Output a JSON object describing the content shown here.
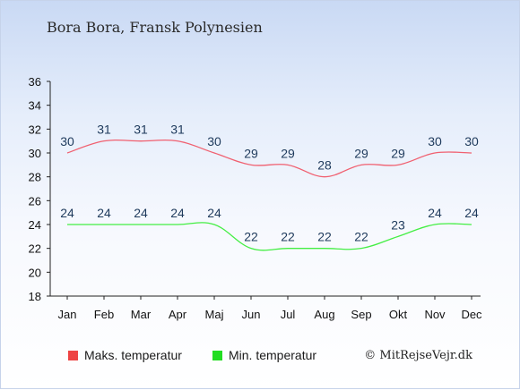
{
  "title": "Bora Bora, Fransk Polynesien",
  "credit": "© MitRejseVejr.dk",
  "colors": {
    "max_line": "#f06070",
    "min_line": "#44ee44",
    "max_swatch": "#ee4444",
    "min_swatch": "#22dd22"
  },
  "legend": [
    {
      "label": "Maks. temperatur",
      "color": "#ee4444"
    },
    {
      "label": "Min. temperatur",
      "color": "#22dd22"
    }
  ],
  "chart_data": {
    "type": "line",
    "categories": [
      "Jan",
      "Feb",
      "Mar",
      "Apr",
      "Maj",
      "Jun",
      "Jul",
      "Aug",
      "Sep",
      "Okt",
      "Nov",
      "Dec"
    ],
    "series": [
      {
        "name": "Maks. temperatur",
        "values": [
          30,
          31,
          31,
          31,
          30,
          29,
          29,
          28,
          29,
          29,
          30,
          30
        ]
      },
      {
        "name": "Min. temperatur",
        "values": [
          24,
          24,
          24,
          24,
          24,
          22,
          22,
          22,
          22,
          23,
          24,
          24
        ]
      }
    ],
    "ylim": [
      18,
      36
    ],
    "yticks": [
      18,
      20,
      22,
      24,
      26,
      28,
      30,
      32,
      34,
      36
    ],
    "grid": false,
    "legend_position": "bottom"
  }
}
